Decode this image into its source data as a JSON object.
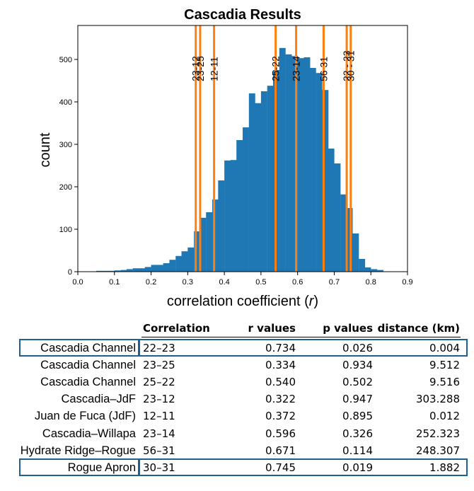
{
  "chart_data": {
    "type": "bar",
    "title": "Cascadia Results",
    "xlabel": "correlation coefficient (r)",
    "ylabel": "count",
    "xlim": [
      0.0,
      0.9
    ],
    "ylim": [
      0,
      580
    ],
    "xticks": [
      "0.0",
      "0.1",
      "0.2",
      "0.3",
      "0.4",
      "0.5",
      "0.6",
      "0.7",
      "0.8",
      "0.9"
    ],
    "yticks": [
      "0",
      "100",
      "200",
      "300",
      "400",
      "500"
    ],
    "bin_width": 0.0167,
    "bins": [
      {
        "x": 0.05,
        "count": 2
      },
      {
        "x": 0.067,
        "count": 2
      },
      {
        "x": 0.083,
        "count": 2
      },
      {
        "x": 0.1,
        "count": 3
      },
      {
        "x": 0.117,
        "count": 4
      },
      {
        "x": 0.133,
        "count": 6
      },
      {
        "x": 0.15,
        "count": 8
      },
      {
        "x": 0.167,
        "count": 8
      },
      {
        "x": 0.183,
        "count": 11
      },
      {
        "x": 0.2,
        "count": 16
      },
      {
        "x": 0.217,
        "count": 16
      },
      {
        "x": 0.233,
        "count": 20
      },
      {
        "x": 0.25,
        "count": 28
      },
      {
        "x": 0.267,
        "count": 37
      },
      {
        "x": 0.283,
        "count": 48
      },
      {
        "x": 0.3,
        "count": 57
      },
      {
        "x": 0.317,
        "count": 95
      },
      {
        "x": 0.333,
        "count": 127
      },
      {
        "x": 0.35,
        "count": 140
      },
      {
        "x": 0.367,
        "count": 170
      },
      {
        "x": 0.383,
        "count": 215
      },
      {
        "x": 0.4,
        "count": 262
      },
      {
        "x": 0.417,
        "count": 263
      },
      {
        "x": 0.433,
        "count": 310
      },
      {
        "x": 0.45,
        "count": 340
      },
      {
        "x": 0.467,
        "count": 420
      },
      {
        "x": 0.483,
        "count": 397
      },
      {
        "x": 0.5,
        "count": 425
      },
      {
        "x": 0.517,
        "count": 438
      },
      {
        "x": 0.533,
        "count": 475
      },
      {
        "x": 0.55,
        "count": 527
      },
      {
        "x": 0.567,
        "count": 512
      },
      {
        "x": 0.583,
        "count": 508
      },
      {
        "x": 0.6,
        "count": 503
      },
      {
        "x": 0.617,
        "count": 505
      },
      {
        "x": 0.633,
        "count": 480
      },
      {
        "x": 0.65,
        "count": 468
      },
      {
        "x": 0.667,
        "count": 428
      },
      {
        "x": 0.683,
        "count": 290
      },
      {
        "x": 0.7,
        "count": 255
      },
      {
        "x": 0.717,
        "count": 182
      },
      {
        "x": 0.733,
        "count": 150
      },
      {
        "x": 0.75,
        "count": 90
      },
      {
        "x": 0.767,
        "count": 30
      },
      {
        "x": 0.783,
        "count": 10
      },
      {
        "x": 0.8,
        "count": 6
      },
      {
        "x": 0.817,
        "count": 4
      }
    ],
    "markers": [
      {
        "label": "23-12",
        "r": 0.322
      },
      {
        "label": "23-25",
        "r": 0.334
      },
      {
        "label": "12-11",
        "r": 0.372
      },
      {
        "label": "25-22",
        "r": 0.54
      },
      {
        "label": "23-14",
        "r": 0.596
      },
      {
        "label": "56 31",
        "r": 0.671
      },
      {
        "label": "22 - 23",
        "r": 0.734
      },
      {
        "label": "30 - 31",
        "r": 0.745
      }
    ],
    "bar_color": "#1f77b4",
    "marker_color": "#ff7f0e"
  },
  "table": {
    "headers": {
      "correlation": "Correlation",
      "r_values": "r values",
      "p_values": "p values",
      "distance": "distance (km)"
    },
    "rows": [
      {
        "name": "Cascadia Channel",
        "correlation": "22–23",
        "r": "0.734",
        "p": "0.026",
        "distance": "0.004",
        "highlighted": true
      },
      {
        "name": "Cascadia Channel",
        "correlation": "23–25",
        "r": "0.334",
        "p": "0.934",
        "distance": "9.512",
        "highlighted": false
      },
      {
        "name": "Cascadia Channel",
        "correlation": "25–22",
        "r": "0.540",
        "p": "0.502",
        "distance": "9.516",
        "highlighted": false
      },
      {
        "name": "Cascadia–JdF",
        "correlation": "23–12",
        "r": "0.322",
        "p": "0.947",
        "distance": "303.288",
        "highlighted": false
      },
      {
        "name": "Juan de Fuca (JdF)",
        "correlation": "12–11",
        "r": "0.372",
        "p": "0.895",
        "distance": "0.012",
        "highlighted": false
      },
      {
        "name": "Cascadia–Willapa",
        "correlation": "23–14",
        "r": "0.596",
        "p": "0.326",
        "distance": "252.323",
        "highlighted": false
      },
      {
        "name": "Hydrate Ridge–Rogue",
        "correlation": "56–31",
        "r": "0.671",
        "p": "0.114",
        "distance": "248.307",
        "highlighted": false
      },
      {
        "name": "Rogue Apron",
        "correlation": "30–31",
        "r": "0.745",
        "p": "0.019",
        "distance": "1.882",
        "highlighted": true
      }
    ],
    "highlight_color": "#1f5f8b"
  }
}
